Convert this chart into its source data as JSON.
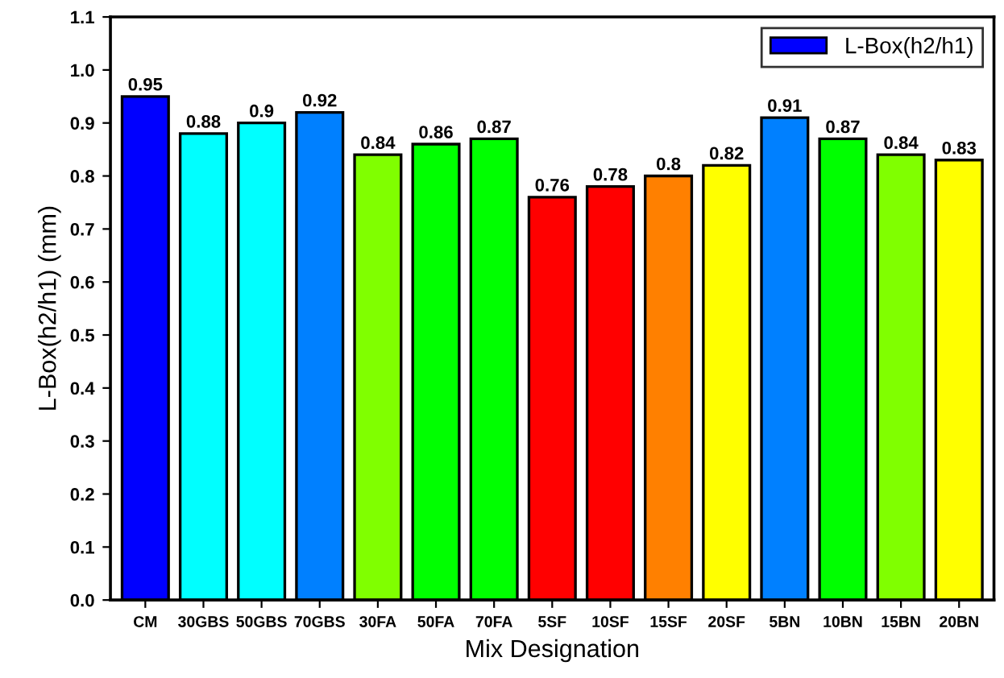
{
  "chart_data": {
    "type": "bar",
    "xlabel": "Mix Designation",
    "ylabel": "L-Box(h2/h1) (mm)",
    "categories": [
      "CM",
      "30GBS",
      "50GBS",
      "70GBS",
      "30FA",
      "50FA",
      "70FA",
      "5SF",
      "10SF",
      "15SF",
      "20SF",
      "5BN",
      "10BN",
      "15BN",
      "20BN"
    ],
    "series": [
      {
        "name": "L-Box(h2/h1)",
        "color": "#0000ff",
        "colors": [
          "#0000ff",
          "#00ffff",
          "#00ffff",
          "#0080ff",
          "#80ff00",
          "#00ff00",
          "#00ff00",
          "#ff0000",
          "#ff0000",
          "#ff8000",
          "#ffff00",
          "#0080ff",
          "#00ff00",
          "#80ff00",
          "#ffff00"
        ],
        "values": [
          0.95,
          0.88,
          0.9,
          0.92,
          0.84,
          0.86,
          0.87,
          0.76,
          0.78,
          0.8,
          0.82,
          0.91,
          0.87,
          0.84,
          0.83
        ]
      }
    ],
    "ylim": [
      0,
      1.1
    ],
    "yticks": [
      {
        "value": 0,
        "label": "0.0"
      },
      0.1,
      0.2,
      0.3,
      0.4,
      0.5,
      0.6,
      0.7,
      0.8,
      0.9,
      {
        "value": 1,
        "label": "1.0"
      },
      1.1
    ],
    "data_labels": true,
    "legend": "top right",
    "grid": false
  }
}
